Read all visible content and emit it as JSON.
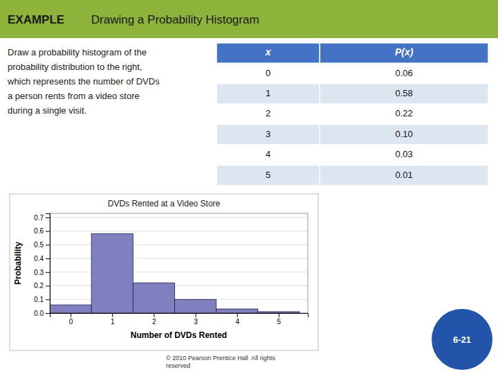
{
  "chart_data": {
    "type": "bar",
    "title": "DVDs Rented at a Video Store",
    "xlabel": "Number of DVDs Rented",
    "ylabel": "Probability",
    "x": [
      0,
      1,
      2,
      3,
      4,
      5
    ],
    "values": [
      0.06,
      0.58,
      0.22,
      0.1,
      0.03,
      0.01
    ],
    "color": "#8080c0",
    "xlim": [
      -0.5,
      5.7
    ],
    "xticks": [
      0,
      1,
      2,
      3,
      4,
      5
    ],
    "ylim": [
      0,
      0.73
    ],
    "yticks": [
      {
        "value": 0,
        "label": "0.0"
      },
      0.1,
      0.2,
      0.3,
      0.4,
      0.5,
      0.6,
      0.7
    ],
    "grid": true
  },
  "page": {
    "title_example": "EXAMPLE",
    "title_rest": "        Drawing a Probability Histogram",
    "description": [
      "Draw a probability histogram of the",
      "probability distribution to the right,",
      "which represents the number of DVDs",
      "a person rents from a video store",
      "during a single visit."
    ],
    "table": {
      "header": [
        "x",
        "P(x)"
      ],
      "rows": [
        [
          "0",
          "0.06"
        ],
        [
          "1",
          "0.58"
        ],
        [
          "2",
          "0.22"
        ],
        [
          "3",
          "0.10"
        ],
        [
          "4",
          "0.03"
        ],
        [
          "5",
          "0.01"
        ]
      ]
    },
    "footer": [
      "© 2010 Pearson Prentice Hall  All rights",
      "reserved"
    ],
    "slide_number": "6-21"
  }
}
